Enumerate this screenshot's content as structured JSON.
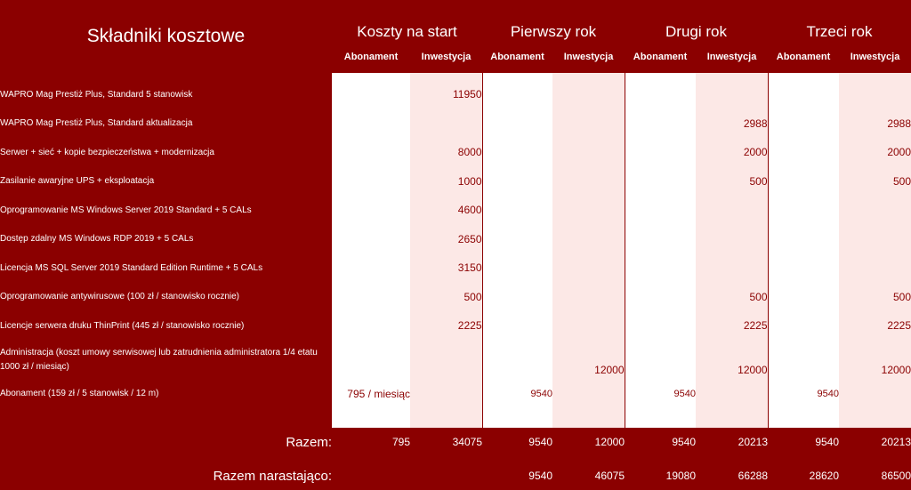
{
  "header": {
    "title": "Składniki kosztowe",
    "periods": [
      "Koszty na start",
      "Pierwszy rok",
      "Drugi rok",
      "Trzeci rok"
    ],
    "subcolumns": [
      "Abonament",
      "Inwestycja"
    ]
  },
  "rows": [
    {
      "label": "WAPRO Mag Prestiż Plus, Standard 5 stanowisk",
      "values": [
        "",
        "11950",
        "",
        "",
        "",
        "",
        "",
        ""
      ]
    },
    {
      "label": "WAPRO Mag Prestiż Plus, Standard aktualizacja",
      "values": [
        "",
        "",
        "",
        "",
        "",
        "2988",
        "",
        "2988"
      ]
    },
    {
      "label": "Serwer + sieć + kopie bezpieczeństwa + modernizacja",
      "values": [
        "",
        "8000",
        "",
        "",
        "",
        "2000",
        "",
        "2000"
      ]
    },
    {
      "label": "Zasilanie awaryjne UPS + eksploatacja",
      "values": [
        "",
        "1000",
        "",
        "",
        "",
        "500",
        "",
        "500"
      ]
    },
    {
      "label": "Oprogramowanie MS Windows Server 2019 Standard + 5 CALs",
      "values": [
        "",
        "4600",
        "",
        "",
        "",
        "",
        "",
        ""
      ]
    },
    {
      "label": "Dostęp zdalny MS Windows RDP 2019 + 5 CALs",
      "values": [
        "",
        "2650",
        "",
        "",
        "",
        "",
        "",
        ""
      ]
    },
    {
      "label": "Licencja MS SQL Server 2019 Standard Edition Runtime + 5 CALs",
      "values": [
        "",
        "3150",
        "",
        "",
        "",
        "",
        "",
        ""
      ]
    },
    {
      "label": "Oprogramowanie antywirusowe (100 zł / stanowisko rocznie)",
      "values": [
        "",
        "500",
        "",
        "",
        "",
        "500",
        "",
        "500"
      ]
    },
    {
      "label": "Licencje serwera druku ThinPrint (445 zł / stanowisko rocznie)",
      "values": [
        "",
        "2225",
        "",
        "",
        "",
        "2225",
        "",
        "2225"
      ]
    },
    {
      "label": "Administracja (koszt umowy serwisowej lub zatrudnienia administratora 1/4 etatu 1000 zł / miesiąc)",
      "values": [
        "",
        "",
        "",
        "12000",
        "",
        "12000",
        "",
        "12000"
      ]
    },
    {
      "label": "Abonament (159 zł / 5 stanowisk / 12 m)",
      "values": [
        "795 / miesiąc",
        "",
        "9540",
        "",
        "9540",
        "",
        "9540",
        ""
      ]
    }
  ],
  "totals": {
    "label": "Razem:",
    "values": [
      "795",
      "34075",
      "9540",
      "12000",
      "9540",
      "20213",
      "9540",
      "20213"
    ]
  },
  "cumulative": {
    "label": "Razem narastająco:",
    "values": [
      "",
      "",
      "9540",
      "46075",
      "19080",
      "66288",
      "28620",
      "86500"
    ]
  },
  "colors": {
    "dark_red": "#8b0000",
    "pink": "#fce8e6",
    "white": "#ffffff"
  }
}
